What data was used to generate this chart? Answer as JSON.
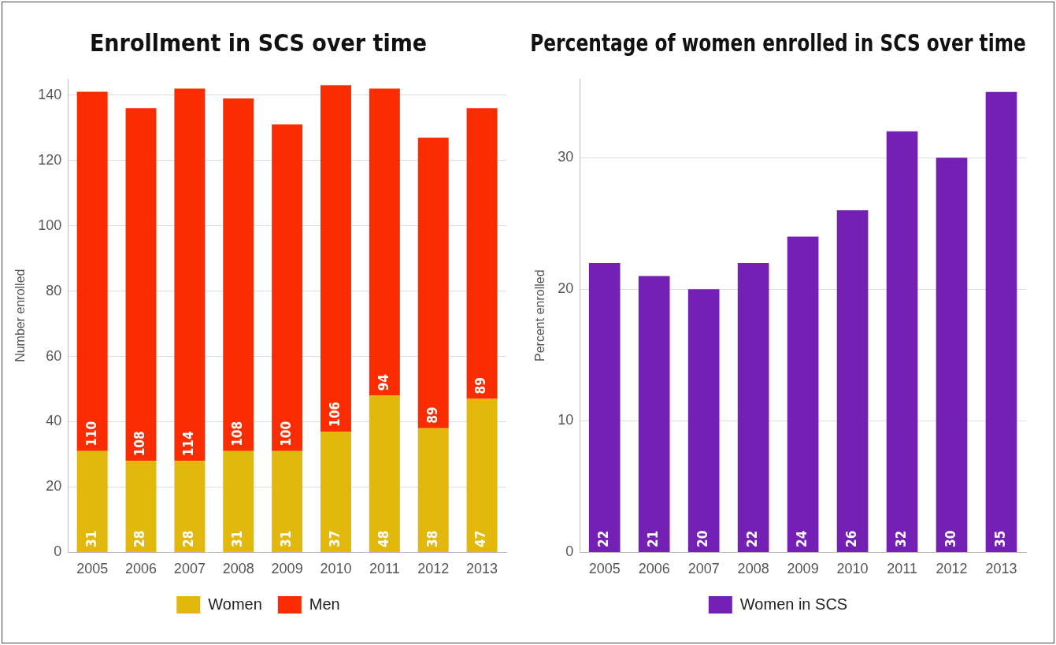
{
  "chart_data": [
    {
      "type": "bar",
      "title": "Enrollment in SCS over time",
      "ylabel": "Number enrolled",
      "categories": [
        "2005",
        "2006",
        "2007",
        "2008",
        "2009",
        "2010",
        "2011",
        "2012",
        "2013"
      ],
      "stacked": true,
      "series": [
        {
          "name": "Women",
          "color": "#e2b80c",
          "values": [
            31,
            28,
            28,
            31,
            31,
            37,
            48,
            38,
            47
          ]
        },
        {
          "name": "Men",
          "color": "#fb2d00",
          "values": [
            110,
            108,
            114,
            108,
            100,
            106,
            94,
            89,
            89
          ]
        }
      ],
      "ylim": [
        0,
        145
      ],
      "yticks": [
        0,
        20,
        40,
        60,
        80,
        100,
        120,
        140
      ],
      "grid": "y",
      "legend": "bottom",
      "data_labels": true
    },
    {
      "type": "bar",
      "title": "Percentage of women enrolled in SCS over time",
      "ylabel": "Percent enrolled",
      "categories": [
        "2005",
        "2006",
        "2007",
        "2008",
        "2009",
        "2010",
        "2011",
        "2012",
        "2013"
      ],
      "series": [
        {
          "name": "Women in SCS",
          "color": "#7420b4",
          "values": [
            22,
            21,
            20,
            22,
            24,
            26,
            32,
            30,
            35
          ]
        }
      ],
      "ylim": [
        0,
        36
      ],
      "yticks": [
        0,
        10,
        20,
        30
      ],
      "grid": "y",
      "legend": "bottom",
      "data_labels": true
    }
  ]
}
